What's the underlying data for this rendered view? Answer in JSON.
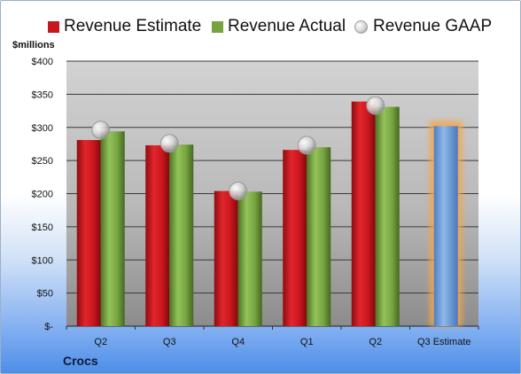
{
  "legend": {
    "estimate": "Revenue Estimate",
    "actual": "Revenue Actual",
    "gaap": "Revenue GAAP"
  },
  "unit_label": "$millions",
  "company": "Crocs",
  "colors": {
    "estimate": "#c8161d",
    "actual": "#77a341",
    "gaap": "#c9c9c9",
    "forecast": "#6e9fd8",
    "forecast_glow": "#f5a54a",
    "plot_bg_top": "#cfcfcf",
    "plot_bg_bottom": "#8e8e8e"
  },
  "chart_data": {
    "type": "bar",
    "categories": [
      "Q2",
      "Q3",
      "Q4",
      "Q1",
      "Q2",
      "Q3 Estimate"
    ],
    "series": [
      {
        "name": "Revenue Estimate",
        "values": [
          281,
          273,
          204,
          266,
          339,
          302
        ]
      },
      {
        "name": "Revenue Actual",
        "values": [
          294,
          274,
          203,
          270,
          331,
          null
        ]
      },
      {
        "name": "Revenue GAAP",
        "values": [
          296,
          276,
          204,
          273,
          333,
          null
        ]
      }
    ],
    "forecast_index": 5,
    "y_ticks": [
      "$-",
      "$50",
      "$100",
      "$150",
      "$200",
      "$250",
      "$300",
      "$350",
      "$400"
    ],
    "ylim": [
      0,
      400
    ],
    "grid": true,
    "legend_position": "top"
  }
}
